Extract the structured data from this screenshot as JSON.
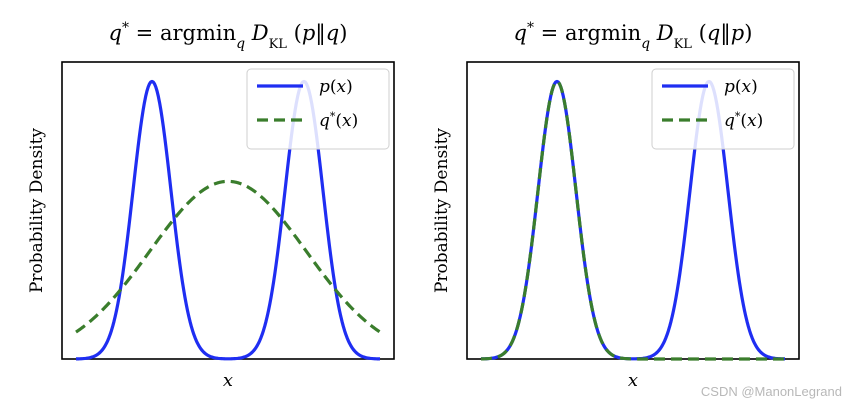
{
  "chart_data": [
    {
      "type": "line",
      "title": {
        "lhs": "q",
        "lhs_sup": "*",
        "eq": " = argmin",
        "sub": "q",
        "func": " D",
        "func_sub": "KL",
        "args": " (p‖q)"
      },
      "xlabel": "x",
      "ylabel": "Probability Density",
      "xlim": [
        -4,
        4
      ],
      "ylim": [
        0,
        1.07
      ],
      "legend_position": "top-right",
      "series": [
        {
          "name": "p(x)",
          "style": "solid",
          "color": "#1f2ef2",
          "kind": "mixture",
          "components": [
            [
              -2,
              0.5,
              1
            ],
            [
              2,
              0.5,
              1
            ]
          ]
        },
        {
          "name": "q*(x)",
          "style": "dashed",
          "color": "#3a7d2c",
          "kind": "gaussian",
          "mu": 0,
          "sigma": 2.06,
          "amp": 0.64
        }
      ]
    },
    {
      "type": "line",
      "title": {
        "lhs": "q",
        "lhs_sup": "*",
        "eq": " = argmin",
        "sub": "q",
        "func": " D",
        "func_sub": "KL",
        "args": " (q‖p)"
      },
      "xlabel": "x",
      "ylabel": "Probability Density",
      "xlim": [
        -4,
        4
      ],
      "ylim": [
        0,
        1.07
      ],
      "legend_position": "top-right",
      "series": [
        {
          "name": "p(x)",
          "style": "solid",
          "color": "#1f2ef2",
          "kind": "mixture",
          "components": [
            [
              -2,
              0.5,
              1
            ],
            [
              2,
              0.5,
              1
            ]
          ]
        },
        {
          "name": "q*(x)",
          "style": "dashed",
          "color": "#3a7d2c",
          "kind": "gaussian",
          "mu": -2,
          "sigma": 0.5,
          "amp": 1.0
        }
      ]
    }
  ],
  "watermark": "CSDN @ManonLegrand"
}
